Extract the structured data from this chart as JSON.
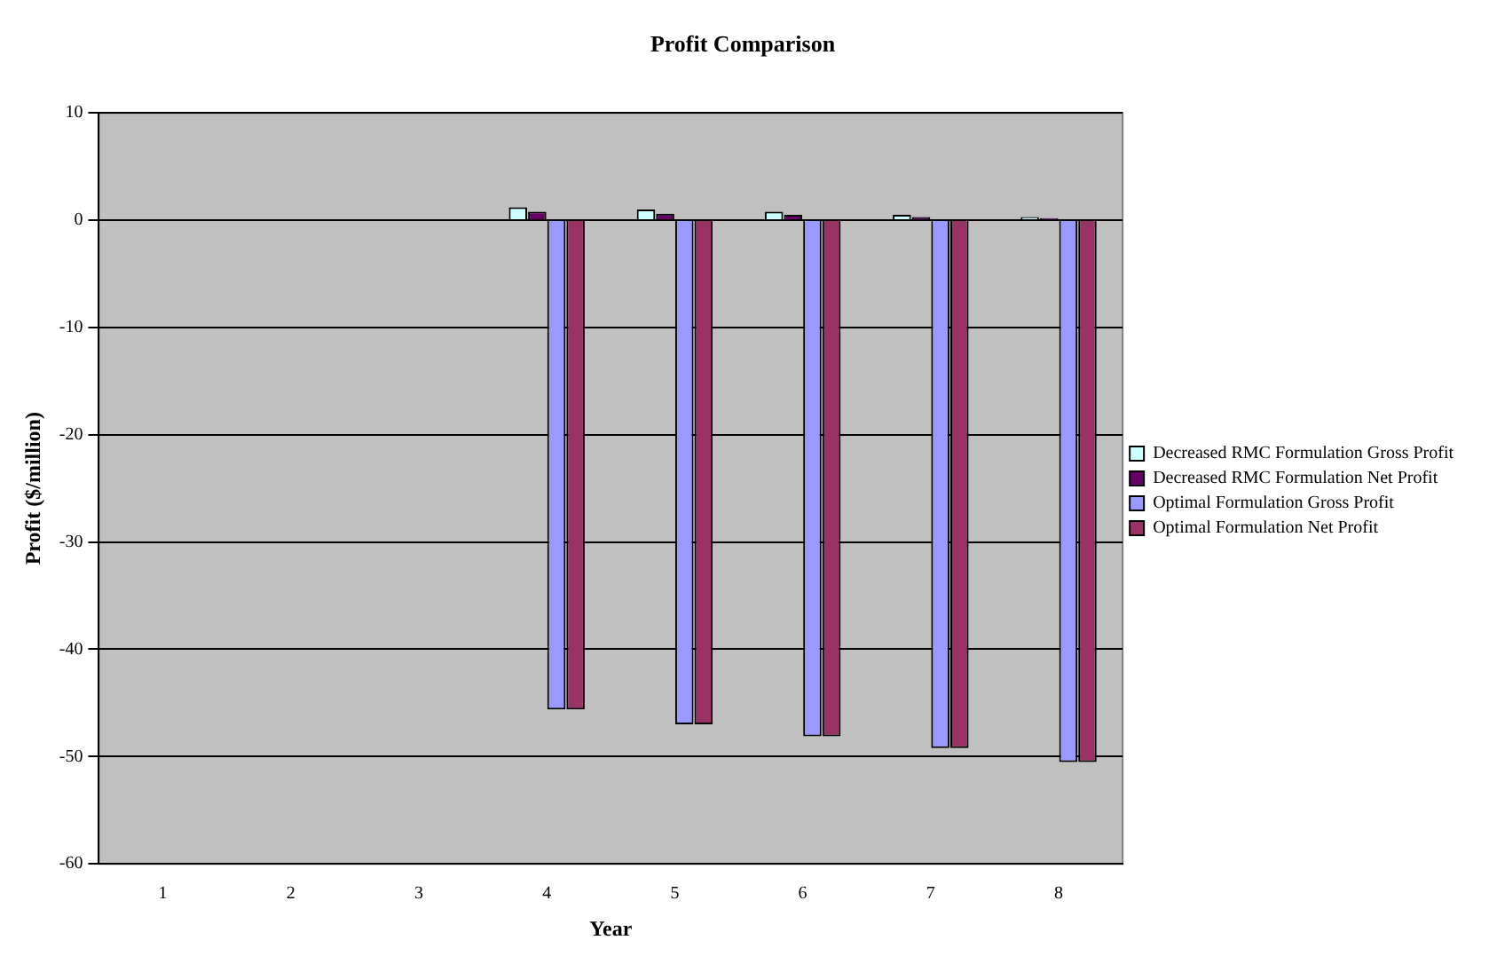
{
  "chart_data": {
    "type": "bar",
    "title": "Profit Comparison",
    "xlabel": "Year",
    "ylabel": "Profit ($/million)",
    "categories": [
      "1",
      "2",
      "3",
      "4",
      "5",
      "6",
      "7",
      "8"
    ],
    "series": [
      {
        "name": "Decreased RMC Formulation Gross Profit",
        "color": "#ccffff",
        "values": [
          null,
          null,
          null,
          1.2,
          1.0,
          0.8,
          0.5,
          0.3
        ]
      },
      {
        "name": "Decreased RMC Formulation Net Profit",
        "color": "#660066",
        "values": [
          null,
          null,
          null,
          0.8,
          0.6,
          0.5,
          0.3,
          0.2
        ]
      },
      {
        "name": "Optimal Formulation Gross Profit",
        "color": "#9999ff",
        "values": [
          null,
          null,
          null,
          -45.6,
          -47,
          -48.1,
          -49.2,
          -50.5
        ]
      },
      {
        "name": "Optimal Formulation Net Profit",
        "color": "#993366",
        "values": [
          null,
          null,
          null,
          -45.6,
          -47,
          -48.1,
          -49.2,
          -50.5
        ]
      }
    ],
    "ylim": [
      -60,
      10
    ],
    "yticks": [
      -60,
      -50,
      -40,
      -30,
      -20,
      -10,
      0,
      10
    ],
    "grid": "y",
    "legend": "right"
  }
}
